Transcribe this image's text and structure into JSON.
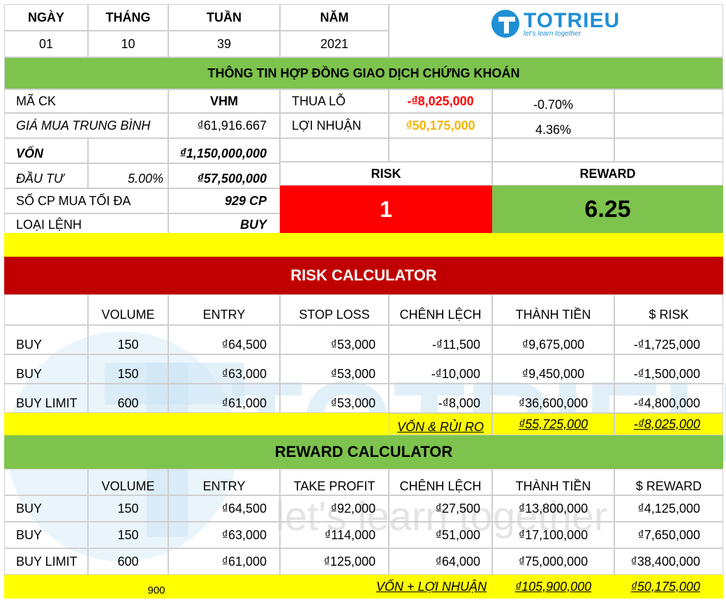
{
  "brand": {
    "logo_text": "TOTRIEU",
    "tagline": "let's learn together",
    "watermark_text": "TOTRIEU",
    "watermark_tagline": "let's learn together",
    "color": "#1f8fd6"
  },
  "date": {
    "labels": [
      "NGÀY",
      "THÁNG",
      "TUẦN",
      "NĂM"
    ],
    "values": [
      "01",
      "10",
      "39",
      "2021"
    ]
  },
  "contract": {
    "title": "THÔNG TIN HỢP ĐỒNG GIAO DỊCH CHỨNG KHOÁN",
    "ticker_label": "MÃ CK",
    "ticker": "VHM",
    "loss_label": "THUA LỖ",
    "loss_value": "-₫8,025,000",
    "loss_pct": "-0.70%",
    "avg_price_label": "GIÁ MUA TRUNG BÌNH",
    "avg_price": "₫61,916.667",
    "profit_label": "LỢI NHUẬN",
    "profit_value": "₫50,175,000",
    "profit_pct": "4.36%",
    "capital_label": "VỐN",
    "capital": "₫1,150,000,000",
    "invest_label": "ĐẦU TƯ",
    "invest_pct": "5.00%",
    "invest_value": "₫57,500,000",
    "max_shares_label": "SỐ CP MUA TỐI ĐA",
    "max_shares": "929 CP",
    "order_type_label": "LOẠI LỆNH",
    "order_type": "BUY",
    "risk_label": "RISK",
    "risk_value": "1",
    "reward_label": "REWARD",
    "reward_value": "6.25"
  },
  "risk_calc": {
    "title": "RISK CALCULATOR",
    "headers": [
      "VOLUME",
      "ENTRY",
      "STOP LOSS",
      "CHÊNH LỆCH",
      "THÀNH TIỀN",
      "$ RISK"
    ],
    "rows": [
      [
        "BUY",
        "150",
        "₫64,500",
        "₫53,000",
        "-₫11,500",
        "₫9,675,000",
        "-₫1,725,000"
      ],
      [
        "BUY",
        "150",
        "₫63,000",
        "₫53,000",
        "-₫10,000",
        "₫9,450,000",
        "-₫1,500,000"
      ],
      [
        "BUY LIMIT",
        "600",
        "₫61,000",
        "₫53,000",
        "-₫8,000",
        "₫36,600,000",
        "-₫4,800,000"
      ]
    ],
    "total_label": "VỐN & RỦI RO",
    "total_amount": "₫55,725,000",
    "total_risk": "-₫8,025,000"
  },
  "reward_calc": {
    "title": "REWARD CALCULATOR",
    "headers": [
      "VOLUME",
      "ENTRY",
      "TAKE PROFIT",
      "CHÊNH LỆCH",
      "THÀNH TIỀN",
      "$ REWARD"
    ],
    "rows": [
      [
        "BUY",
        "150",
        "₫64,500",
        "₫92,000",
        "₫27,500",
        "₫13,800,000",
        "₫4,125,000"
      ],
      [
        "BUY",
        "150",
        "₫63,000",
        "₫114,000",
        "₫51,000",
        "₫17,100,000",
        "₫7,650,000"
      ],
      [
        "BUY LIMIT",
        "600",
        "₫61,000",
        "₫125,000",
        "₫64,000",
        "₫75,000,000",
        "₫38,400,000"
      ]
    ],
    "total_volume": "900",
    "total_label": "VỐN + LỢI NHUẬN",
    "total_amount": "₫105,900,000",
    "total_reward": "₫50,175,000"
  }
}
